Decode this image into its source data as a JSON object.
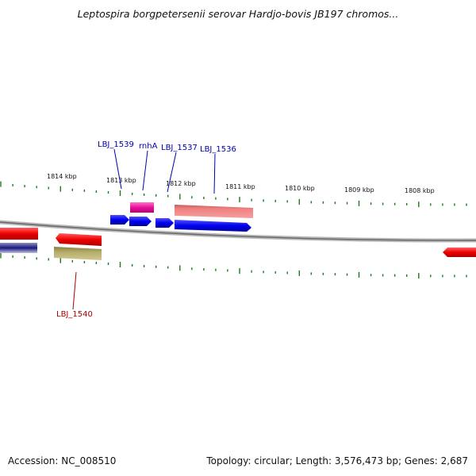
{
  "title": "Leptospira borgpetersenii serovar Hardjo-bovis JB197 chromos...",
  "footer": {
    "accession": "Accession: NC_008510",
    "stats": "Topology: circular; Length: 3,576,473 bp; Genes: 2,687"
  },
  "ruler": {
    "unit": "kbp",
    "labels": [
      "1814 kbp",
      "1813 kbp",
      "1812 kbp",
      "1811 kbp",
      "1810 kbp",
      "1809 kbp",
      "1808 kbp"
    ]
  },
  "genes": {
    "forward_labels": [
      "LBJ_1539",
      "rnhA",
      "LBJ_1537",
      "LBJ_1536"
    ],
    "reverse_labels": [
      "LBJ_1540"
    ]
  },
  "colors": {
    "forward_cds": "#0000ee",
    "reverse_cds": "#ee0000",
    "forward_rna": "#e8109a",
    "forward_feature": "#f08080",
    "reverse_feature": "#b5ad6a",
    "reverse_dark": "#1a1a80",
    "forward_label": "#0000aa",
    "reverse_label": "#aa0000",
    "tick": "#1a7a1a",
    "backbone": "#808080"
  }
}
